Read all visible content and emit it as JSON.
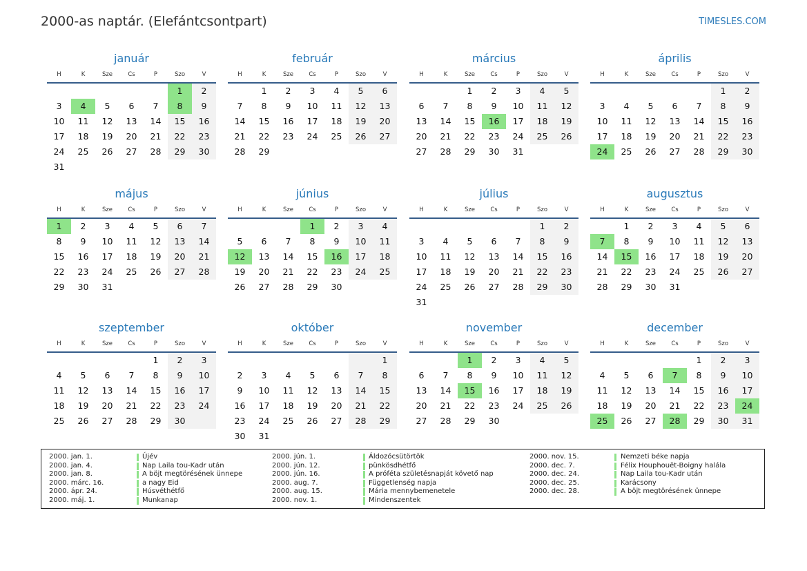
{
  "header": {
    "title": "2000-as naptár. (Elefántcsontpart)",
    "site": "TIMESLES.COM"
  },
  "weekdays": [
    "H",
    "K",
    "Sze",
    "Cs",
    "P",
    "Szo",
    "V"
  ],
  "colors": {
    "accent": "#2a7ab9",
    "holiday": "#8fe38a",
    "weekend": "#f2f2f2"
  },
  "months": [
    {
      "name": "január",
      "start": 5,
      "days": 31,
      "holidays": [
        1,
        4,
        8
      ]
    },
    {
      "name": "február",
      "start": 1,
      "days": 29,
      "holidays": []
    },
    {
      "name": "március",
      "start": 2,
      "days": 31,
      "holidays": [
        16
      ]
    },
    {
      "name": "április",
      "start": 5,
      "days": 30,
      "holidays": [
        24
      ]
    },
    {
      "name": "május",
      "start": 0,
      "days": 31,
      "holidays": [
        1
      ]
    },
    {
      "name": "június",
      "start": 3,
      "days": 30,
      "holidays": [
        1,
        12,
        16
      ]
    },
    {
      "name": "július",
      "start": 5,
      "days": 31,
      "holidays": []
    },
    {
      "name": "augusztus",
      "start": 1,
      "days": 31,
      "holidays": [
        7,
        15
      ]
    },
    {
      "name": "szeptember",
      "start": 4,
      "days": 30,
      "holidays": []
    },
    {
      "name": "október",
      "start": 6,
      "days": 31,
      "holidays": []
    },
    {
      "name": "november",
      "start": 2,
      "days": 30,
      "holidays": [
        1,
        15
      ]
    },
    {
      "name": "december",
      "start": 4,
      "days": 31,
      "holidays": [
        7,
        24,
        25,
        28
      ]
    }
  ],
  "legend": [
    [
      {
        "date": "2000. jan. 1.",
        "name": "Újév"
      },
      {
        "date": "2000. jan. 4.",
        "name": "Nap Laila tou-Kadr után"
      },
      {
        "date": "2000. jan. 8.",
        "name": "A böjt megtörésének ünnepe"
      },
      {
        "date": "2000. márc. 16.",
        "name": "a nagy Eid"
      },
      {
        "date": "2000. ápr. 24.",
        "name": "Húsvéthétfő"
      },
      {
        "date": "2000. máj. 1.",
        "name": "Munkanap"
      }
    ],
    [
      {
        "date": "2000. jún. 1.",
        "name": "Áldozócsütörtök"
      },
      {
        "date": "2000. jún. 12.",
        "name": "pünkösdhétfő"
      },
      {
        "date": "2000. jún. 16.",
        "name": "A próféta születésnapját követő nap"
      },
      {
        "date": "2000. aug. 7.",
        "name": "Függetlenség napja"
      },
      {
        "date": "2000. aug. 15.",
        "name": "Mária mennybemenetele"
      },
      {
        "date": "2000. nov. 1.",
        "name": "Mindenszentek"
      }
    ],
    [
      {
        "date": "2000. nov. 15.",
        "name": "Nemzeti béke napja"
      },
      {
        "date": "2000. dec. 7.",
        "name": "Félix Houphouët-Boigny halála"
      },
      {
        "date": "2000. dec. 24.",
        "name": "Nap Laila tou-Kadr után"
      },
      {
        "date": "2000. dec. 25.",
        "name": "Karácsony"
      },
      {
        "date": "2000. dec. 28.",
        "name": "A böjt megtörésének ünnepe"
      }
    ]
  ]
}
